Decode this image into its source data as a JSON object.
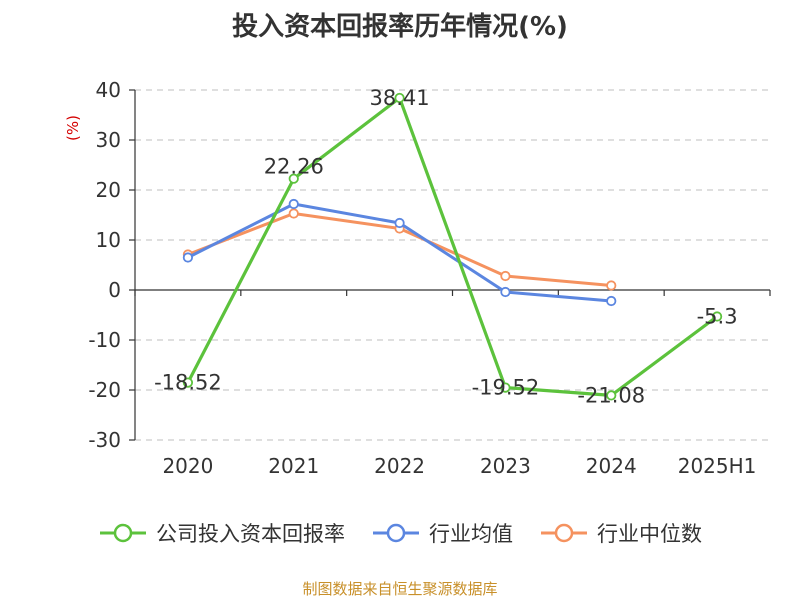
{
  "title": "投入资本回报率历年情况(%)",
  "source": "制图数据来自恒生聚源数据库",
  "colors": {
    "company": "#5cc23c",
    "avg": "#5b86e0",
    "median": "#f5925f",
    "unit": "#d40000",
    "grid": "#cccccc",
    "axis": "#333333",
    "text": "#333333"
  },
  "chart_data": {
    "type": "line",
    "title": "投入资本回报率历年情况(%)",
    "ylabel": "(%)",
    "xlabel": "",
    "categories": [
      "2020",
      "2021",
      "2022",
      "2023",
      "2024",
      "2025H1"
    ],
    "ylim": [
      -30,
      40
    ],
    "yticks": [
      40,
      30,
      20,
      10,
      0,
      -10,
      -20,
      -30
    ],
    "grid": true,
    "legend_position": "bottom",
    "series": [
      {
        "name": "公司投入资本回报率",
        "color": "#5cc23c",
        "values": [
          -18.52,
          22.26,
          38.41,
          -19.52,
          -21.08,
          -5.3
        ],
        "labels": [
          "-18.52",
          "22.26",
          "38.41",
          "-19.52",
          "-21.08",
          "-5.3"
        ]
      },
      {
        "name": "行业均值",
        "color": "#5b86e0",
        "values": [
          6.5,
          17.2,
          13.4,
          -0.4,
          -2.2,
          null
        ]
      },
      {
        "name": "行业中位数",
        "color": "#f5925f",
        "values": [
          7.1,
          15.3,
          12.3,
          2.8,
          0.9,
          null
        ]
      }
    ]
  }
}
